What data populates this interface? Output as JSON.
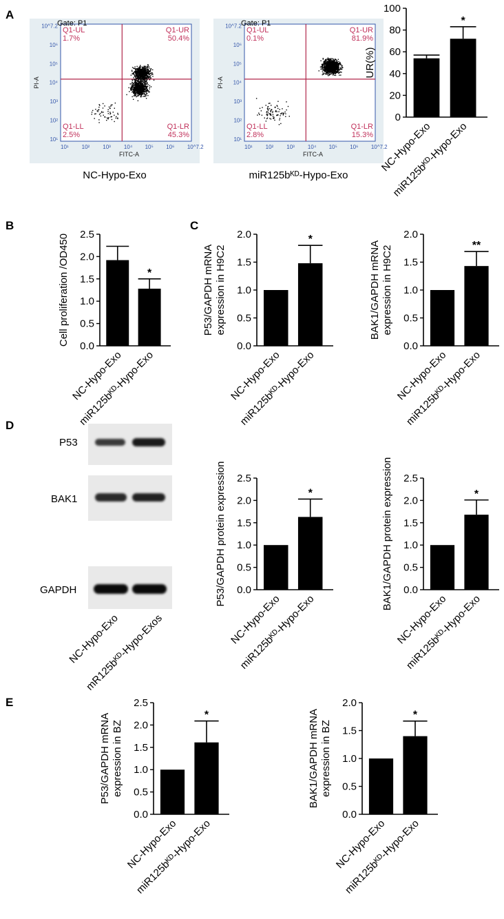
{
  "panels": {
    "A": "A",
    "B": "B",
    "C": "C",
    "D": "D",
    "E": "E"
  },
  "flow": [
    {
      "gate": "Gate: P1",
      "q": [
        "Q1-UL",
        "Q1-UR",
        "Q1-LL",
        "Q1-LR"
      ],
      "pct": [
        "1.7%",
        "50.4%",
        "2.5%",
        "45.3%"
      ],
      "ylab": "PI-A",
      "xlab": "FITC-A",
      "ticks_x": [
        "10¹",
        "10²",
        "10³",
        "10⁴",
        "10⁵",
        "10⁶",
        "10^7.2"
      ],
      "ticks_y": [
        "10¹",
        "10²",
        "10³",
        "10⁴",
        "10⁵",
        "10⁶",
        "10^7.2"
      ],
      "caption": "NC-Hypo-Exo"
    },
    {
      "gate": "Gate: P1",
      "q": [
        "Q1-UL",
        "Q1-UR",
        "Q1-LL",
        "Q1-LR"
      ],
      "pct": [
        "0.1%",
        "81.9%",
        "2.8%",
        "15.3%"
      ],
      "ylab": "PI-A",
      "xlab": "FITC-A",
      "ticks_x": [
        "10¹",
        "10²",
        "10³",
        "10⁴",
        "10⁵",
        "10⁶",
        "10^7.2"
      ],
      "ticks_y": [
        "10¹",
        "10²",
        "10³",
        "10⁴",
        "10⁵",
        "10⁶",
        "10^7.2"
      ],
      "caption": "miR125bᴷᴰ-Hypo-Exo"
    }
  ],
  "western": {
    "labels": [
      "P53",
      "BAK1",
      "GAPDH"
    ],
    "lanes": [
      "NC-Hypo-Exo",
      "mR125bᴷᴰ-Hypo-Exos"
    ]
  },
  "colors": {
    "bar": "#000000",
    "flow_bg": "#e6eef2",
    "gate": "#b0254a",
    "dots": "#000000",
    "quad_text": "#c0305a"
  },
  "chart_data": [
    {
      "id": "A",
      "type": "bar",
      "categories": [
        "NC-Hypo-Exo",
        "miR125bᴷᴰ-Hypo-Exo"
      ],
      "values": [
        54,
        72
      ],
      "errors": [
        3,
        11
      ],
      "sig": [
        "",
        "*"
      ],
      "ylabel": "UR(%)",
      "ylim": [
        0,
        100
      ],
      "ticks": [
        "0",
        "20",
        "40",
        "60",
        "80",
        "100"
      ],
      "tickvals": [
        0,
        20,
        40,
        60,
        80,
        100
      ]
    },
    {
      "id": "B",
      "type": "bar",
      "categories": [
        "NC-Hypo-Exo",
        "miR125bᴷᴰ-Hypo-Exo"
      ],
      "values": [
        1.92,
        1.28
      ],
      "errors": [
        0.31,
        0.22
      ],
      "sig": [
        "",
        "*"
      ],
      "ylabel": "Cell proliferation /OD450",
      "ylim": [
        0,
        2.5
      ],
      "ticks": [
        "0.0",
        "0.5",
        "1.0",
        "1.5",
        "2.0",
        "2.5"
      ],
      "tickvals": [
        0,
        0.5,
        1,
        1.5,
        2,
        2.5
      ]
    },
    {
      "id": "C1",
      "type": "bar",
      "categories": [
        "NC-Hypo-Exo",
        "miR125bᴷᴰ-Hypo-Exo"
      ],
      "values": [
        1.0,
        1.48
      ],
      "errors": [
        0,
        0.32
      ],
      "sig": [
        "",
        "*"
      ],
      "ylabel": [
        "P53/GAPDH mRNA",
        "expression in H9C2"
      ],
      "ylim": [
        0,
        2.0
      ],
      "ticks": [
        "0.0",
        "0.5",
        "1.0",
        "1.5",
        "2.0"
      ],
      "tickvals": [
        0,
        0.5,
        1,
        1.5,
        2
      ]
    },
    {
      "id": "C2",
      "type": "bar",
      "categories": [
        "NC-Hypo-Exo",
        "miR125bᴷᴰ-Hypo-Exo"
      ],
      "values": [
        1.0,
        1.43
      ],
      "errors": [
        0,
        0.26
      ],
      "sig": [
        "",
        "**"
      ],
      "ylabel": [
        "BAK1/GAPDH mRNA",
        "expression in H9C2"
      ],
      "ylim": [
        0,
        2.0
      ],
      "ticks": [
        "0.0",
        "0.5",
        "1.0",
        "1.5",
        "2.0"
      ],
      "tickvals": [
        0,
        0.5,
        1,
        1.5,
        2
      ]
    },
    {
      "id": "D1",
      "type": "bar",
      "categories": [
        "NC-Hypo-Exo",
        "miR125bᴷᴰ-Hypo-Exo"
      ],
      "values": [
        1.0,
        1.63
      ],
      "errors": [
        0,
        0.4
      ],
      "sig": [
        "",
        "*"
      ],
      "ylabel": "P53/GAPDH protein expression",
      "ylim": [
        0,
        2.5
      ],
      "ticks": [
        "0.0",
        "0.5",
        "1.0",
        "1.5",
        "2.0",
        "2.5"
      ],
      "tickvals": [
        0,
        0.5,
        1,
        1.5,
        2,
        2.5
      ]
    },
    {
      "id": "D2",
      "type": "bar",
      "categories": [
        "NC-Hypo-Exo",
        "miR125bᴷᴰ-Hypo-Exo"
      ],
      "values": [
        1.0,
        1.68
      ],
      "errors": [
        0,
        0.33
      ],
      "sig": [
        "",
        "*"
      ],
      "ylabel": "BAK1/GAPDH protein expression",
      "ylim": [
        0,
        2.5
      ],
      "ticks": [
        "0.0",
        "0.5",
        "1.0",
        "1.5",
        "2.0",
        "2.5"
      ],
      "tickvals": [
        0,
        0.5,
        1,
        1.5,
        2,
        2.5
      ]
    },
    {
      "id": "E1",
      "type": "bar",
      "categories": [
        "NC-Hypo-Exo",
        "miR125bᴷᴰ-Hypo-Exo"
      ],
      "values": [
        1.0,
        1.61
      ],
      "errors": [
        0,
        0.48
      ],
      "sig": [
        "",
        "*"
      ],
      "ylabel": [
        "P53/GAPDH mRNA",
        "expression  in BZ"
      ],
      "ylim": [
        0,
        2.5
      ],
      "ticks": [
        "0.0",
        "0.5",
        "1.0",
        "1.5",
        "2.0",
        "2.5"
      ],
      "tickvals": [
        0,
        0.5,
        1,
        1.5,
        2,
        2.5
      ]
    },
    {
      "id": "E2",
      "type": "bar",
      "categories": [
        "NC-Hypo-Exo",
        "miR125bᴷᴰ-Hypo-Exo"
      ],
      "values": [
        1.0,
        1.4
      ],
      "errors": [
        0,
        0.27
      ],
      "sig": [
        "",
        "*"
      ],
      "ylabel": [
        "BAK1/GAPDH mRNA",
        "expression in BZ"
      ],
      "ylim": [
        0,
        2.0
      ],
      "ticks": [
        "0.0",
        "0.5",
        "1.0",
        "1.5",
        "2.0"
      ],
      "tickvals": [
        0,
        0.5,
        1,
        1.5,
        2
      ]
    }
  ]
}
